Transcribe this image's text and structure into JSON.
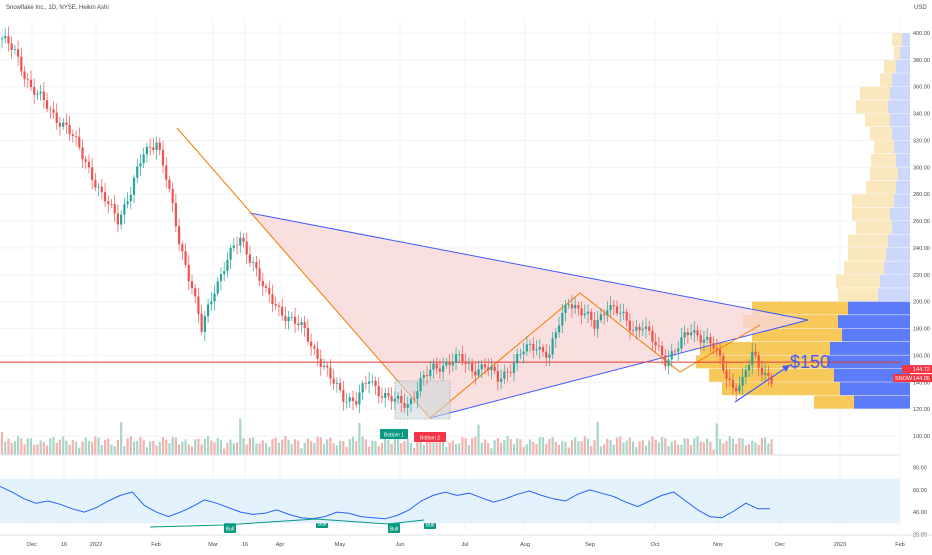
{
  "header": {
    "title": "Snowflake Inc., 1D, NYSE, Heikin Ashi",
    "currency": "USD"
  },
  "colors": {
    "up": "#26a69a",
    "down": "#ef5350",
    "trend_orange": "#f57c00",
    "triangle_line": "#3d5afe",
    "triangle_fill": "#f8d7d7",
    "hline": "#e53935",
    "rsi_line": "#2962ff",
    "rsi_band": "#e3f2fd",
    "vp_up": "#5d7cfa",
    "vp_down": "#f7c85a",
    "vp_up_light": "#cdd7fb",
    "vp_down_light": "#fbe7bd"
  },
  "chart_data": {
    "type": "candlestick",
    "title": "Snowflake Inc., 1D, NYSE, Heikin Ashi",
    "y_axis": {
      "ticks": [
        400,
        380,
        360,
        340,
        320,
        300,
        280,
        260,
        240,
        220,
        200,
        180,
        160,
        140,
        120,
        100
      ],
      "range": [
        100,
        410
      ],
      "unit": "USD"
    },
    "x_axis": {
      "labels": [
        "Dec",
        "16",
        "2022",
        "Feb",
        "Mar",
        "16",
        "Apr",
        "May",
        "Jun",
        "Jul",
        "Aug",
        "Sep",
        "Oct",
        "Nov",
        "Dec",
        "2023",
        "Feb"
      ]
    },
    "price_path": [
      [
        0,
        396
      ],
      [
        4,
        385
      ],
      [
        9,
        360
      ],
      [
        15,
        342
      ],
      [
        20,
        330
      ],
      [
        26,
        305
      ],
      [
        31,
        278
      ],
      [
        36,
        262
      ],
      [
        40,
        282
      ],
      [
        44,
        310
      ],
      [
        48,
        321
      ],
      [
        51,
        292
      ],
      [
        55,
        245
      ],
      [
        59,
        212
      ],
      [
        62,
        178
      ],
      [
        66,
        210
      ],
      [
        70,
        232
      ],
      [
        74,
        246
      ],
      [
        78,
        230
      ],
      [
        82,
        205
      ],
      [
        86,
        195
      ],
      [
        90,
        186
      ],
      [
        94,
        178
      ],
      [
        98,
        160
      ],
      [
        102,
        142
      ],
      [
        106,
        130
      ],
      [
        110,
        126
      ],
      [
        114,
        142
      ],
      [
        118,
        132
      ],
      [
        122,
        125
      ],
      [
        126,
        124
      ],
      [
        130,
        140
      ],
      [
        134,
        150
      ],
      [
        138,
        155
      ],
      [
        142,
        157
      ],
      [
        146,
        150
      ],
      [
        150,
        152
      ],
      [
        154,
        142
      ],
      [
        158,
        152
      ],
      [
        162,
        163
      ],
      [
        166,
        168
      ],
      [
        170,
        160
      ],
      [
        173,
        183
      ],
      [
        176,
        202
      ],
      [
        180,
        192
      ],
      [
        184,
        182
      ],
      [
        188,
        198
      ],
      [
        192,
        190
      ],
      [
        196,
        180
      ],
      [
        199,
        183
      ],
      [
        202,
        170
      ],
      [
        206,
        157
      ],
      [
        210,
        167
      ],
      [
        214,
        178
      ],
      [
        218,
        174
      ],
      [
        221,
        166
      ],
      [
        224,
        150
      ],
      [
        227,
        137
      ],
      [
        230,
        140
      ],
      [
        233,
        160
      ],
      [
        236,
        150
      ],
      [
        239,
        142
      ]
    ],
    "volume_scale": [
      0,
      1
    ],
    "annotations": {
      "labels": [
        "Bottom 1",
        "Bottom 2",
        "Bull",
        "Bull",
        "Bull",
        "Bull"
      ],
      "price_target": "$150",
      "horizontal_line_value": 155
    },
    "price_labels": [
      {
        "symbol": "",
        "value": "144.72"
      },
      {
        "symbol": "SNOW",
        "value": "144.05"
      }
    ],
    "rsi": {
      "ticks": [
        80,
        60,
        40,
        20
      ],
      "range": [
        15,
        85
      ],
      "band": [
        30,
        70
      ],
      "values": [
        63,
        58,
        52,
        48,
        50,
        47,
        43,
        40,
        44,
        50,
        55,
        58,
        46,
        40,
        36,
        40,
        45,
        51,
        48,
        44,
        40,
        38,
        39,
        42,
        38,
        35,
        34,
        36,
        40,
        39,
        36,
        35,
        34,
        37,
        42,
        50,
        55,
        58,
        55,
        57,
        53,
        49,
        52,
        56,
        59,
        55,
        52,
        50,
        56,
        60,
        57,
        54,
        49,
        45,
        50,
        55,
        58,
        50,
        42,
        36,
        35,
        41,
        48,
        43,
        43
      ]
    },
    "volume_profile": [
      {
        "price": 395,
        "up": 8,
        "down": 10
      },
      {
        "price": 385,
        "up": 10,
        "down": 6
      },
      {
        "price": 375,
        "up": 14,
        "down": 12
      },
      {
        "price": 365,
        "up": 18,
        "down": 12
      },
      {
        "price": 355,
        "up": 20,
        "down": 30
      },
      {
        "price": 345,
        "up": 22,
        "down": 32
      },
      {
        "price": 335,
        "up": 20,
        "down": 25
      },
      {
        "price": 325,
        "up": 18,
        "down": 22
      },
      {
        "price": 315,
        "up": 16,
        "down": 20
      },
      {
        "price": 305,
        "up": 14,
        "down": 25
      },
      {
        "price": 295,
        "up": 12,
        "down": 28
      },
      {
        "price": 285,
        "up": 14,
        "down": 30
      },
      {
        "price": 275,
        "up": 16,
        "down": 42
      },
      {
        "price": 265,
        "up": 20,
        "down": 38
      },
      {
        "price": 255,
        "up": 18,
        "down": 36
      },
      {
        "price": 245,
        "up": 22,
        "down": 40
      },
      {
        "price": 235,
        "up": 24,
        "down": 38
      },
      {
        "price": 225,
        "up": 26,
        "down": 40
      },
      {
        "price": 215,
        "up": 30,
        "down": 44
      },
      {
        "price": 205,
        "up": 32,
        "down": 40
      },
      {
        "price": 195,
        "up": 62,
        "down": 96
      },
      {
        "price": 185,
        "up": 72,
        "down": 95
      },
      {
        "price": 175,
        "up": 68,
        "down": 90
      },
      {
        "price": 165,
        "up": 80,
        "down": 130
      },
      {
        "price": 155,
        "up": 82,
        "down": 132
      },
      {
        "price": 145,
        "up": 76,
        "down": 125
      },
      {
        "price": 135,
        "up": 70,
        "down": 118
      },
      {
        "price": 125,
        "up": 56,
        "down": 40
      }
    ]
  }
}
